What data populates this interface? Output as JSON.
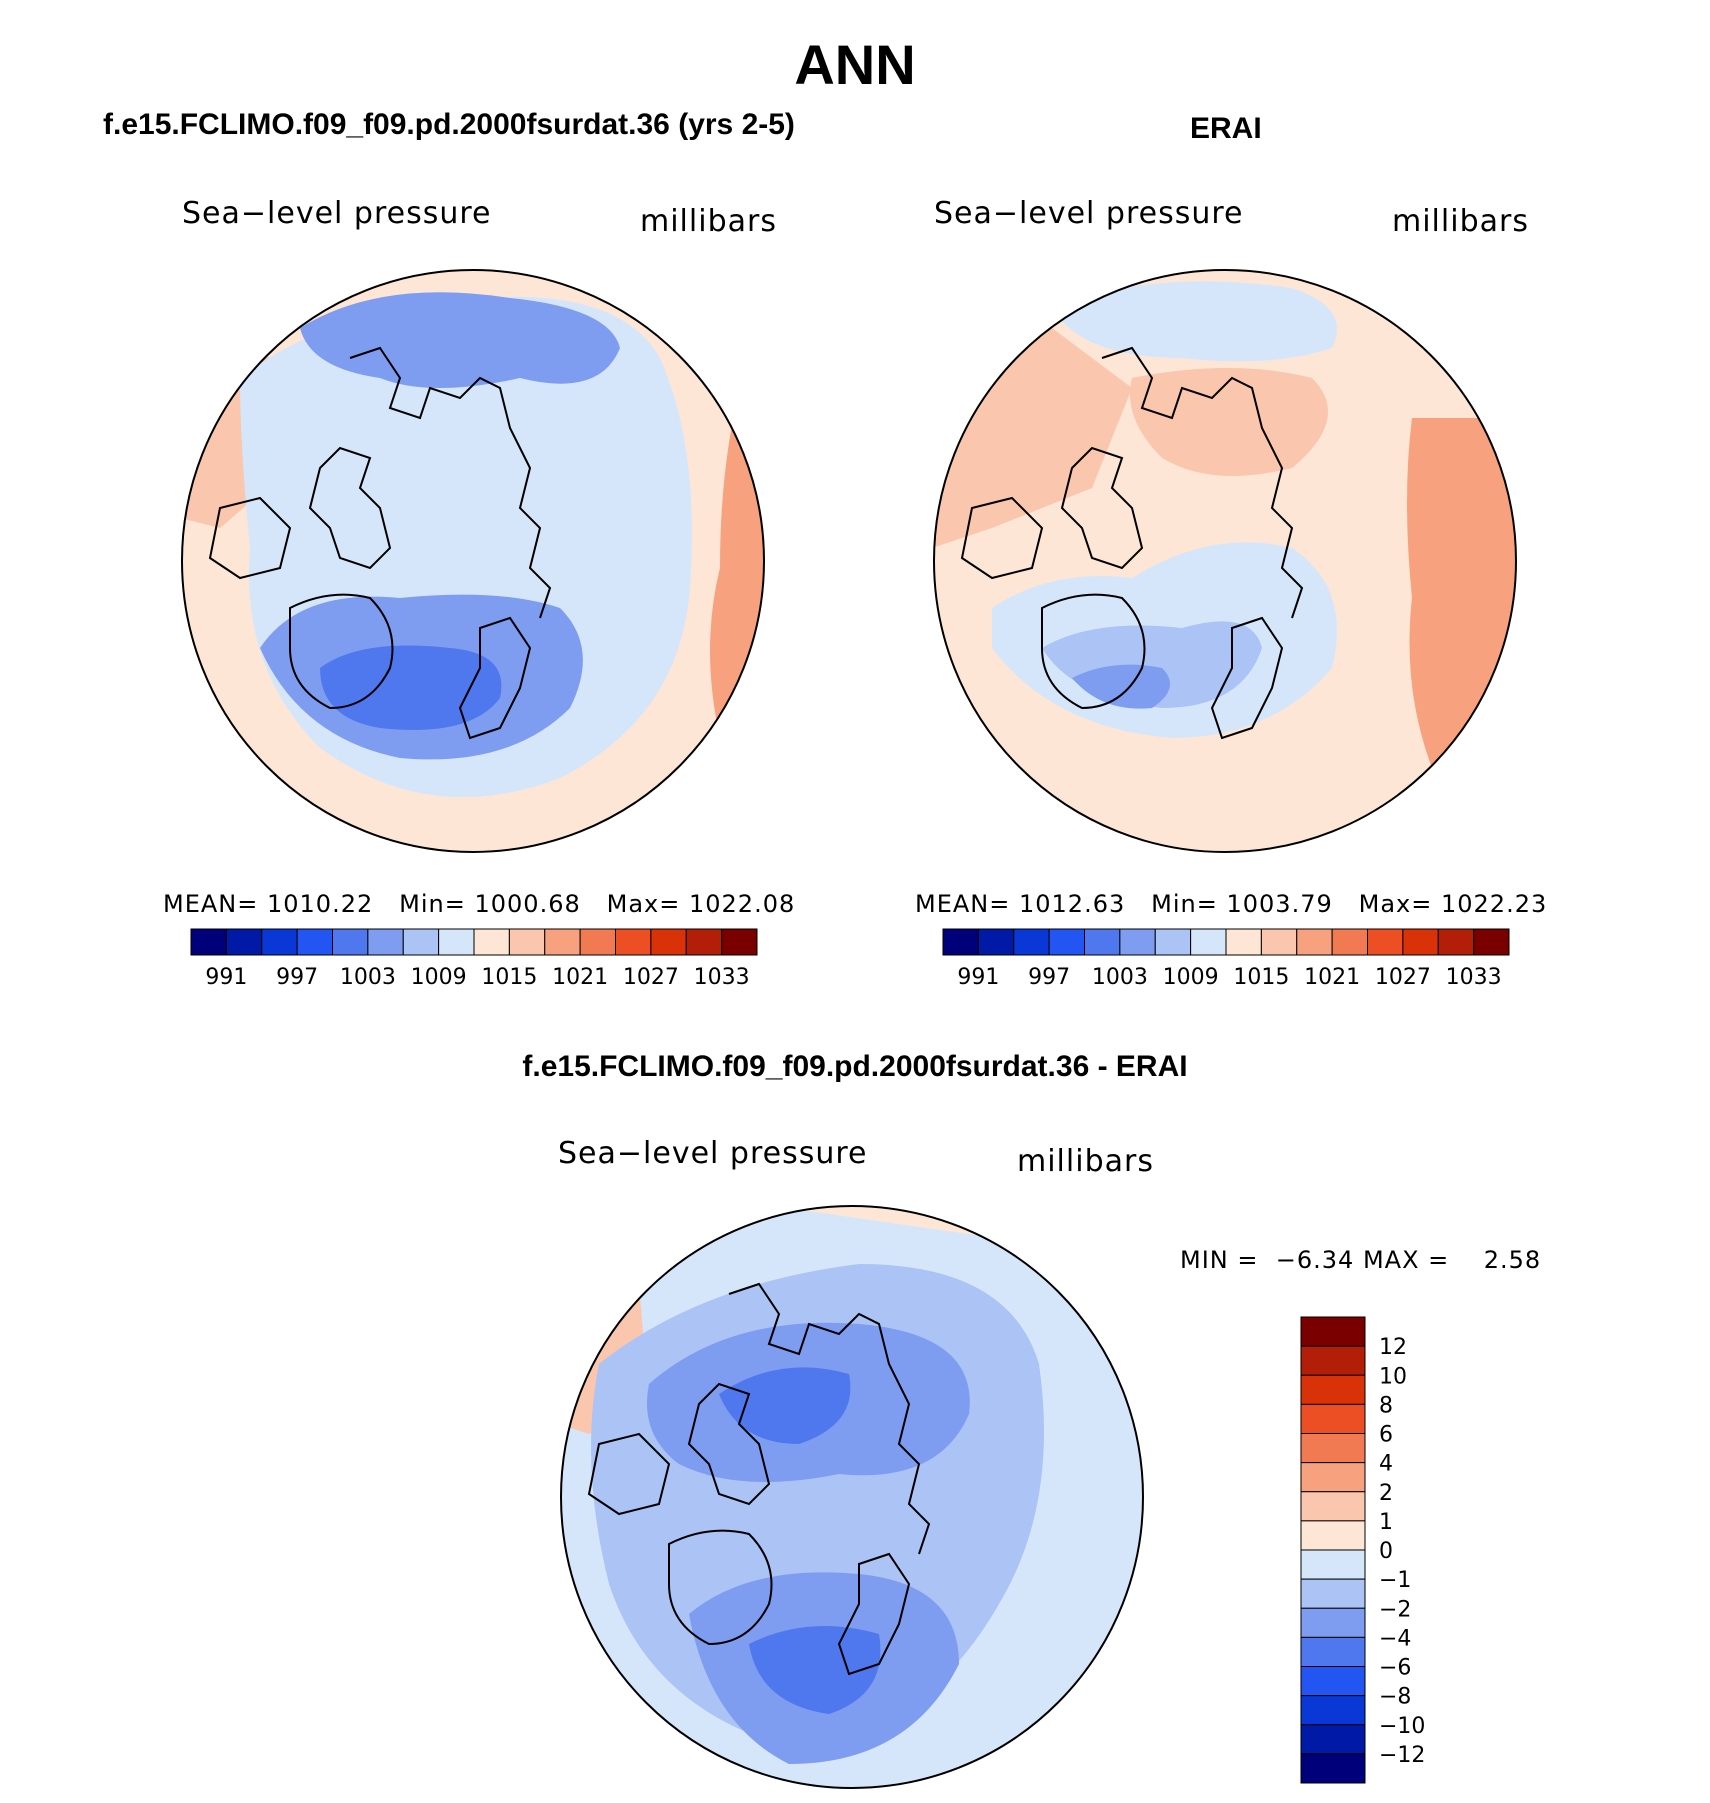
{
  "figure": {
    "title": "ANN"
  },
  "colors": {
    "abs_levels": [
      "#00007a",
      "#001aa8",
      "#0a38d6",
      "#2255f2",
      "#4f78ef",
      "#7e9cf0",
      "#abc3f5",
      "#d6e6fa",
      "#fde6d6",
      "#fac6ad",
      "#f7a17e",
      "#f27a53",
      "#ec4f24",
      "#d93208",
      "#b31e08",
      "#7a0000"
    ],
    "diff_levels": [
      "#00007a",
      "#001aa8",
      "#0a38d6",
      "#2255f2",
      "#4f78ef",
      "#7e9cf0",
      "#abc3f5",
      "#d6e6fa",
      "#fde6d6",
      "#fac6ad",
      "#f7a17e",
      "#f27a53",
      "#ec4f24",
      "#d93208",
      "#b31e08",
      "#7a0000"
    ]
  },
  "panels": [
    {
      "title": "f.e15.FCLIMO.f09_f09.pd.2000fsurdat.36 (yrs 2-5)",
      "variable": "Sea−level pressure",
      "units": "millibars",
      "stats": {
        "mean_label": "MEAN=",
        "mean": "1010.22",
        "min_label": "Min=",
        "min": "1000.68",
        "max_label": "Max=",
        "max": "1022.08"
      },
      "colorbar_ticks": [
        "991",
        "997",
        "1003",
        "1009",
        "1015",
        "1021",
        "1027",
        "1033"
      ]
    },
    {
      "title": "ERAI",
      "variable": "Sea−level pressure",
      "units": "millibars",
      "stats": {
        "mean_label": "MEAN=",
        "mean": "1012.63",
        "min_label": "Min=",
        "min": "1003.79",
        "max_label": "Max=",
        "max": "1022.23"
      },
      "colorbar_ticks": [
        "991",
        "997",
        "1003",
        "1009",
        "1015",
        "1021",
        "1027",
        "1033"
      ]
    },
    {
      "title": "f.e15.FCLIMO.f09_f09.pd.2000fsurdat.36 - ERAI",
      "variable": "Sea−level pressure",
      "units": "millibars",
      "stats": {
        "min_label": "MIN =",
        "min": "−6.34",
        "max_label": "MAX =",
        "max": "2.58"
      },
      "colorbar_ticks": [
        "12",
        "10",
        "8",
        "6",
        "4",
        "2",
        "1",
        "0",
        "−1",
        "−2",
        "−4",
        "−6",
        "−8",
        "−10",
        "−12"
      ]
    }
  ]
}
